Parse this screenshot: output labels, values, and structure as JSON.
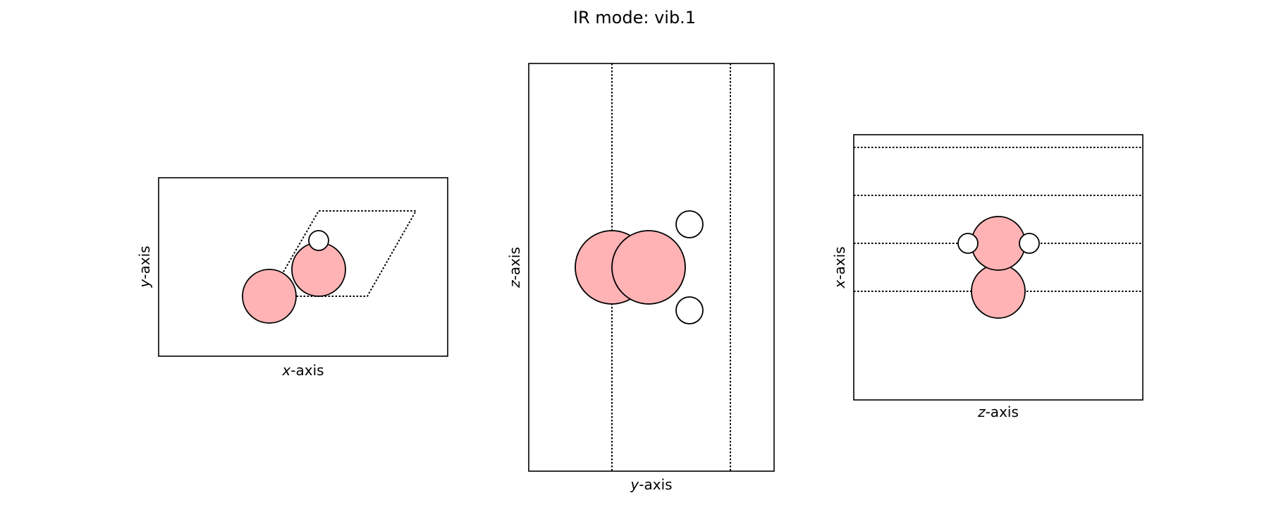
{
  "title": "IR mode: vib.1",
  "colors": {
    "heavy_atom": "#ffb3b5",
    "light_atom": "#ffffff",
    "outline": "#000000"
  },
  "panels": [
    {
      "id": "xy",
      "axis_h_var": "x",
      "axis_h_suffix": "-axis",
      "axis_v_var": "y",
      "axis_v_suffix": "-axis"
    },
    {
      "id": "yz",
      "axis_h_var": "y",
      "axis_h_suffix": "-axis",
      "axis_v_var": "z",
      "axis_v_suffix": "-axis"
    },
    {
      "id": "zx",
      "axis_h_var": "z",
      "axis_h_suffix": "-axis",
      "axis_v_var": "x",
      "axis_v_suffix": "-axis"
    }
  ]
}
